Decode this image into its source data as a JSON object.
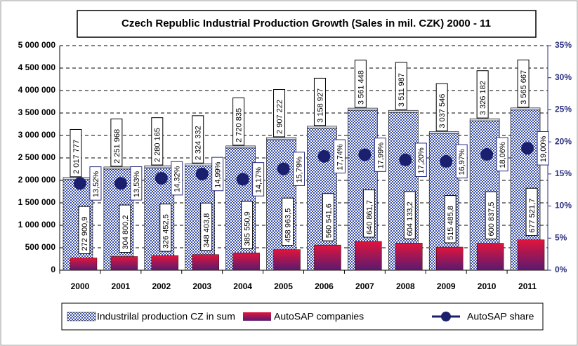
{
  "chart_data": {
    "type": "bar",
    "title": "Czech Republic Industrial Production Growth (Sales in mil. CZK) 2000 - 11",
    "categories": [
      "2000",
      "2001",
      "2002",
      "2003",
      "2004",
      "2005",
      "2006",
      "2007",
      "2008",
      "2009",
      "2010",
      "2011"
    ],
    "series": [
      {
        "name": "Industrilal production CZ in sum",
        "color": "#3a4fa8",
        "values": [
          2017777,
          2251968,
          2280165,
          2324332,
          2720835,
          2907222,
          3158927,
          3561448,
          3511987,
          3037546,
          3326182,
          3565667
        ],
        "value_labels": [
          "2 017 777",
          "2 251 968",
          "2 280 165",
          "2 324 332",
          "2 720 835",
          "2 907 222",
          "3 158 927",
          "3 561 448",
          "3 511 987",
          "3 037 546",
          "3 326 182",
          "3 565 667"
        ]
      },
      {
        "name": "AutoSAP companies",
        "color": "#d0103a",
        "values": [
          272900.9,
          304800.2,
          326452.5,
          348403.8,
          385550.9,
          458963.5,
          560541.6,
          640861.7,
          604133.2,
          515485.8,
          600837.5,
          677521.7
        ],
        "value_labels": [
          "272 900,9",
          "304 800,2",
          "326 452,5",
          "348 403,8",
          "385 550,9",
          "458 963,5",
          "560 541,6",
          "640 861,7",
          "604 133,2",
          "515 485,8",
          "600 837,5",
          "677 521,7"
        ]
      },
      {
        "name": "AutoSAP share",
        "color": "#1a1f6e",
        "axis": "y2",
        "values": [
          13.52,
          13.53,
          14.32,
          14.99,
          14.17,
          15.79,
          17.74,
          17.99,
          17.2,
          16.97,
          18.06,
          19.0
        ],
        "value_labels": [
          "13,52%",
          "13,53%",
          "14,32%",
          "14,99%",
          "14,17%",
          "15,79%",
          "17,74%",
          "17,99%",
          "17,20%",
          "16,97%",
          "18,06%",
          "19,00%"
        ]
      }
    ],
    "ylim": [
      0,
      5000000
    ],
    "yticks": [
      0,
      {
        "value": 500000,
        "label": "500 000"
      },
      {
        "value": 1000000,
        "label": "1 000 000"
      },
      {
        "value": 1500000,
        "label": "1 500 000"
      },
      {
        "value": 2000000,
        "label": "2 000 000"
      },
      {
        "value": 2500000,
        "label": "2 500 000"
      },
      {
        "value": 3000000,
        "label": "3 000 000"
      },
      {
        "value": 3500000,
        "label": "3 500 000"
      },
      {
        "value": 4000000,
        "label": "4 000 000"
      },
      {
        "value": 4500000,
        "label": "4 500 000"
      },
      {
        "value": 5000000,
        "label": "5 000 000"
      }
    ],
    "y2lim": [
      0,
      35
    ],
    "y2ticks": [
      {
        "value": 0,
        "label": "0%"
      },
      {
        "value": 5,
        "label": "5%"
      },
      {
        "value": 10,
        "label": "10%"
      },
      {
        "value": 15,
        "label": "15%"
      },
      {
        "value": 20,
        "label": "20%"
      },
      {
        "value": 25,
        "label": "25%"
      },
      {
        "value": 30,
        "label": "30%"
      },
      {
        "value": 35,
        "label": "35%"
      }
    ],
    "grid": true
  }
}
